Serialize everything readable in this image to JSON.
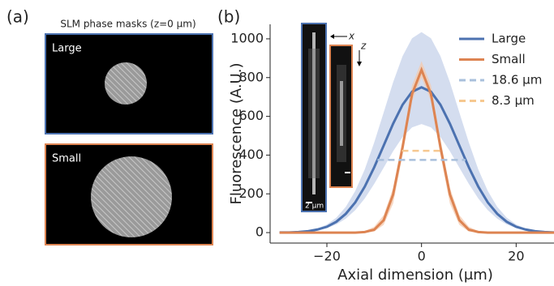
{
  "panel_a": {
    "label": "(a)",
    "title": "SLM phase masks (z=0 μm)",
    "masks": [
      {
        "label": "Large"
      },
      {
        "label": "Small"
      }
    ]
  },
  "chart_data": {
    "type": "line",
    "panel_label": "(b)",
    "xlabel": "Axial dimension (μm)",
    "ylabel": "Fluorescence (A.U.)",
    "inset": {
      "x_axis": "x",
      "z_axis": "z",
      "scale_bar": "2 μm"
    },
    "x": [
      -30,
      -28,
      -26,
      -24,
      -22,
      -20,
      -18,
      -16,
      -14,
      -12,
      -10,
      -8,
      -6,
      -4,
      -2,
      0,
      2,
      4,
      6,
      8,
      10,
      12,
      14,
      16,
      18,
      20,
      22,
      24,
      26,
      28
    ],
    "series": [
      {
        "name": "Large",
        "color": "#4c72b0",
        "band_color": "#c6d2ea",
        "values": [
          1,
          1,
          3,
          7,
          16,
          30,
          56,
          97,
          156,
          237,
          337,
          449,
          562,
          660,
          727,
          750,
          727,
          660,
          562,
          449,
          337,
          237,
          156,
          97,
          56,
          30,
          16,
          7,
          3,
          1
        ],
        "lower": [
          0,
          1,
          2,
          6,
          12,
          23,
          42,
          72,
          116,
          176,
          251,
          335,
          420,
          493,
          543,
          560,
          543,
          493,
          420,
          335,
          251,
          176,
          116,
          72,
          42,
          23,
          12,
          6,
          2,
          1
        ],
        "upper": [
          1,
          2,
          5,
          10,
          21,
          42,
          77,
          133,
          215,
          326,
          465,
          620,
          776,
          911,
          1003,
          1035,
          1003,
          911,
          776,
          620,
          465,
          326,
          215,
          133,
          77,
          42,
          21,
          10,
          5,
          2
        ]
      },
      {
        "name": "Small",
        "color": "#dd8452",
        "band_color": "#f4c9ad",
        "values": [
          0,
          0,
          0,
          0,
          0,
          0,
          0,
          0,
          0,
          3,
          15,
          64,
          197,
          441,
          715,
          840,
          715,
          441,
          197,
          64,
          15,
          3,
          0,
          0,
          0,
          0,
          0,
          0,
          0,
          0
        ],
        "lower": [
          0,
          0,
          0,
          0,
          0,
          0,
          0,
          0,
          0,
          0,
          5,
          40,
          150,
          400,
          680,
          800,
          680,
          400,
          150,
          40,
          5,
          0,
          0,
          0,
          0,
          0,
          0,
          0,
          0,
          0
        ],
        "upper": [
          0,
          0,
          0,
          0,
          0,
          0,
          0,
          0,
          2,
          8,
          30,
          90,
          230,
          480,
          760,
          885,
          760,
          480,
          230,
          90,
          30,
          8,
          2,
          0,
          0,
          0,
          0,
          0,
          0,
          0
        ]
      },
      {
        "name": "18.6 μm",
        "color": "#a9c0dc",
        "dashed": true,
        "x": [
          -9.3,
          9.3
        ],
        "values": [
          375,
          375
        ]
      },
      {
        "name": "8.3 μm",
        "color": "#f6c890",
        "dashed": true,
        "x": [
          -4.15,
          4.15
        ],
        "values": [
          422,
          422
        ]
      }
    ],
    "xlim": [
      -32,
      28
    ],
    "ylim": [
      -54,
      1075
    ],
    "xticks": [
      {
        "value": -20,
        "label": "−20"
      },
      0,
      20
    ],
    "yticks": [
      0,
      200,
      400,
      600,
      800,
      1000
    ]
  }
}
